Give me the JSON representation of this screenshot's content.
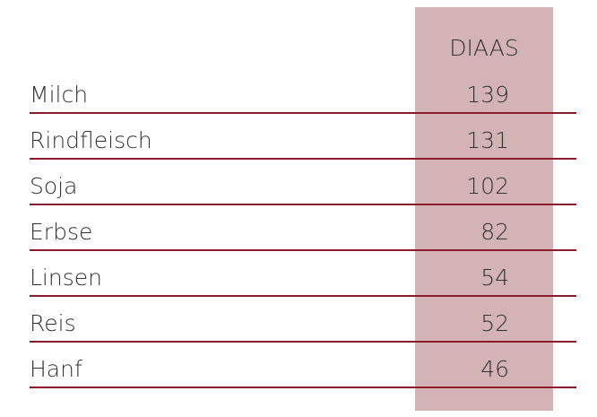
{
  "table": {
    "column_header": "DIAAS",
    "rows": [
      [
        "Milch",
        139
      ],
      [
        "Rindfleisch",
        131
      ],
      [
        "Soja",
        102
      ],
      [
        "Erbse",
        82
      ],
      [
        "Linsen",
        54
      ],
      [
        "Reis",
        52
      ],
      [
        "Hanf",
        46
      ]
    ]
  }
}
